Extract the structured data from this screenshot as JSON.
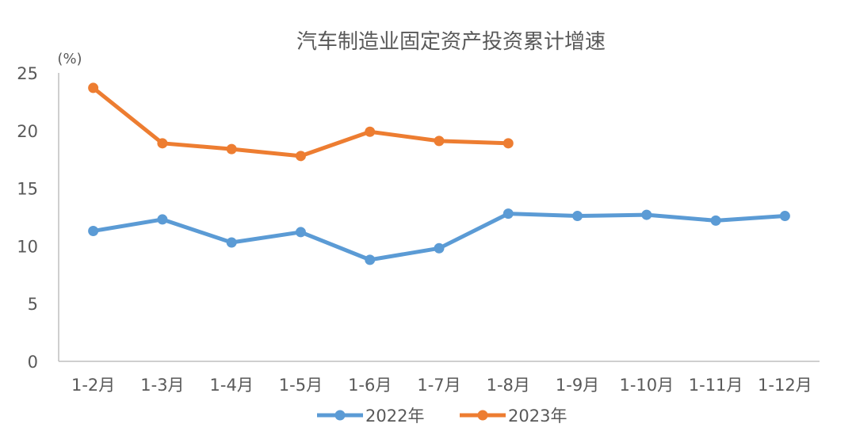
{
  "chart_data": {
    "type": "line",
    "title": "汽车制造业固定资产投资累计增速",
    "y_unit": "(%)",
    "categories": [
      "1-2月",
      "1-3月",
      "1-4月",
      "1-5月",
      "1-6月",
      "1-7月",
      "1-8月",
      "1-9月",
      "1-10月",
      "1-11月",
      "1-12月"
    ],
    "ylim": [
      0,
      25
    ],
    "yticks": [
      0,
      5,
      10,
      15,
      20,
      25
    ],
    "series": [
      {
        "name": "2022年",
        "color": "#5B9BD5",
        "values": [
          11.3,
          12.3,
          10.3,
          11.2,
          8.8,
          9.8,
          12.8,
          12.6,
          12.7,
          12.2,
          12.6
        ]
      },
      {
        "name": "2023年",
        "color": "#ED7D31",
        "values": [
          23.7,
          18.9,
          18.4,
          17.8,
          19.9,
          19.1,
          18.9,
          null,
          null,
          null,
          null
        ]
      }
    ],
    "legend_position": "bottom",
    "grid": false
  }
}
